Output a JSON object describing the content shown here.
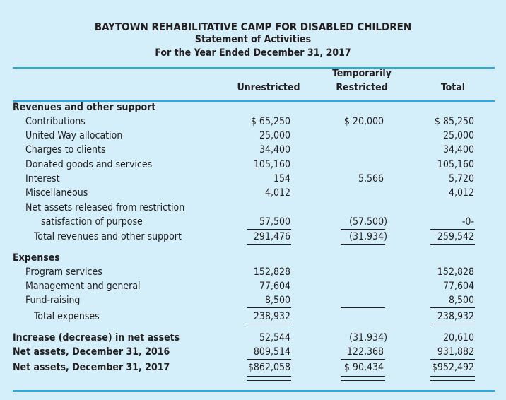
{
  "header": {
    "org_name": "BAYTOWN REHABILITATIVE CAMP FOR DISABLED CHILDREN",
    "statement": "Statement of Activities",
    "period": "For the Year Ended December 31, 2017"
  },
  "columns": {
    "unrestricted": "Unrestricted",
    "temporarily_line1": "Temporarily",
    "temporarily_line2": "Restricted",
    "total": "Total"
  },
  "rows": [
    {
      "label": "Revenues and other support",
      "values": [
        "",
        "",
        ""
      ]
    },
    {
      "label": "Contributions",
      "values": [
        "$ 65,250",
        "$ 20,000",
        "$ 85,250"
      ]
    },
    {
      "label": "United Way allocation",
      "values": [
        "25,000",
        "",
        "25,000"
      ]
    },
    {
      "label": "Charges to clients",
      "values": [
        "34,400",
        "",
        "34,400"
      ]
    },
    {
      "label": "Donated goods and services",
      "values": [
        "105,160",
        "",
        "105,160"
      ]
    },
    {
      "label": "Interest",
      "values": [
        "154",
        "5,566",
        "5,720"
      ]
    },
    {
      "label": "Miscellaneous",
      "values": [
        "4,012",
        "",
        "4,012"
      ]
    },
    {
      "label": "Net assets released from restriction",
      "values": [
        "",
        "",
        ""
      ]
    },
    {
      "label": "satisfaction of purpose",
      "values": [
        "57,500",
        "(57,500)",
        "-0-"
      ]
    },
    {
      "label": "Total revenues and other support",
      "values": [
        "291,476",
        "(31,934)",
        "259,542"
      ]
    },
    {
      "label": "Expenses",
      "values": [
        "",
        "",
        ""
      ]
    },
    {
      "label": "Program services",
      "values": [
        "152,828",
        "",
        "152,828"
      ]
    },
    {
      "label": "Management and general",
      "values": [
        "77,604",
        "",
        "77,604"
      ]
    },
    {
      "label": "Fund-raising",
      "values": [
        "8,500",
        "",
        "8,500"
      ]
    },
    {
      "label": "Total expenses",
      "values": [
        "238,932",
        "",
        "238,932"
      ]
    },
    {
      "label": "Increase (decrease) in net assets",
      "values": [
        "52,544",
        "(31,934)",
        "20,610"
      ]
    },
    {
      "label": "Net assets, December 31, 2016",
      "values": [
        "809,514",
        "122,368",
        "931,882"
      ]
    },
    {
      "label": "Net assets, December 31, 2017",
      "values": [
        "$862,058",
        "$ 90,434",
        "$952,492"
      ]
    }
  ],
  "colors": {
    "background": "#d5effa",
    "rule": "#29abe2",
    "text": "#231f20"
  }
}
